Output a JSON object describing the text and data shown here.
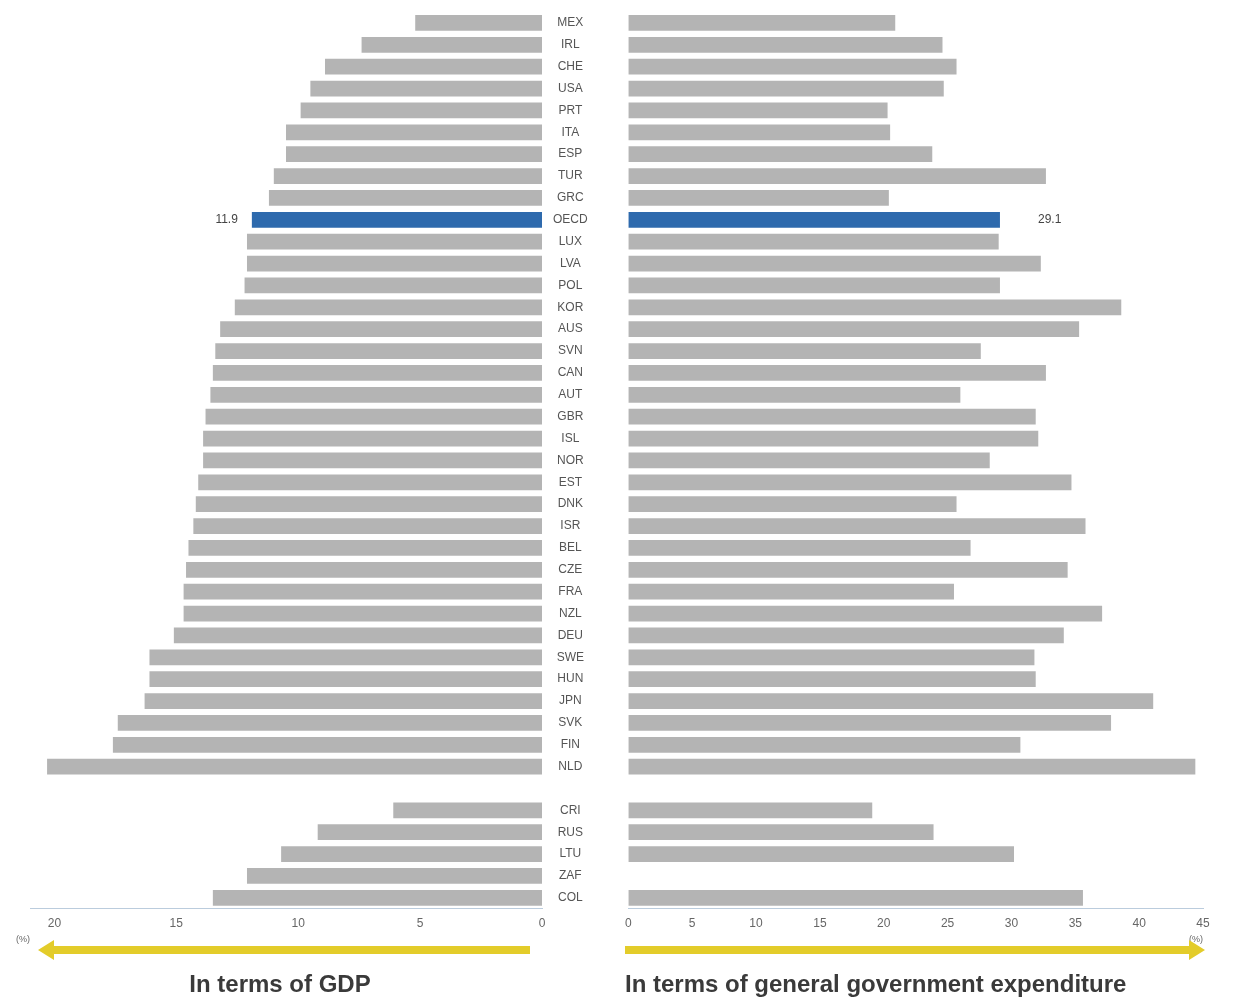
{
  "chart_data": [
    {
      "type": "bar",
      "orientation": "horizontal",
      "title": "In terms of GDP",
      "xlabel": "(%)",
      "xlim": [
        21,
        0
      ],
      "xticks": [
        20,
        15,
        10,
        5,
        0
      ],
      "categories": [
        "MEX",
        "IRL",
        "CHE",
        "USA",
        "PRT",
        "ITA",
        "ESP",
        "TUR",
        "GRC",
        "OECD",
        "LUX",
        "LVA",
        "POL",
        "KOR",
        "AUS",
        "SVN",
        "CAN",
        "AUT",
        "GBR",
        "ISL",
        "NOR",
        "EST",
        "DNK",
        "ISR",
        "BEL",
        "CZE",
        "FRA",
        "NZL",
        "DEU",
        "SWE",
        "HUN",
        "JPN",
        "SVK",
        "FIN",
        "NLD",
        null,
        "CRI",
        "RUS",
        "LTU",
        "ZAF",
        "COL"
      ],
      "values": [
        5.2,
        7.4,
        8.9,
        9.5,
        9.9,
        10.5,
        10.5,
        11.0,
        11.2,
        11.9,
        12.1,
        12.1,
        12.2,
        12.6,
        13.2,
        13.4,
        13.5,
        13.6,
        13.8,
        13.9,
        13.9,
        14.1,
        14.2,
        14.3,
        14.5,
        14.6,
        14.7,
        14.7,
        15.1,
        16.1,
        16.1,
        16.3,
        17.4,
        17.6,
        20.3,
        null,
        6.1,
        9.2,
        10.7,
        12.1,
        13.5
      ],
      "colors": [
        "#b4b4b4",
        "#b4b4b4",
        "#b4b4b4",
        "#b4b4b4",
        "#b4b4b4",
        "#b4b4b4",
        "#b4b4b4",
        "#b4b4b4",
        "#b4b4b4",
        "#2e6aad",
        "#b4b4b4",
        "#b4b4b4",
        "#b4b4b4",
        "#b4b4b4",
        "#b4b4b4",
        "#b4b4b4",
        "#b4b4b4",
        "#b4b4b4",
        "#b4b4b4",
        "#b4b4b4",
        "#b4b4b4",
        "#b4b4b4",
        "#b4b4b4",
        "#b4b4b4",
        "#b4b4b4",
        "#b4b4b4",
        "#b4b4b4",
        "#b4b4b4",
        "#b4b4b4",
        "#b4b4b4",
        "#b4b4b4",
        "#b4b4b4",
        "#b4b4b4",
        "#b4b4b4",
        "#b4b4b4",
        "#b4b4b4",
        "#b4b4b4",
        "#b4b4b4",
        "#b4b4b4",
        "#b4b4b4",
        "#b4b4b4"
      ],
      "value_labels": [
        null,
        null,
        null,
        null,
        null,
        null,
        null,
        null,
        null,
        "11.9",
        null,
        null,
        null,
        null,
        null,
        null,
        null,
        null,
        null,
        null,
        null,
        null,
        null,
        null,
        null,
        null,
        null,
        null,
        null,
        null,
        null,
        null,
        null,
        null,
        null,
        null,
        null,
        null,
        null,
        null,
        null
      ]
    },
    {
      "type": "bar",
      "orientation": "horizontal",
      "title": "In terms of general government expenditure",
      "xlabel": "(%)",
      "xlim": [
        0,
        45
      ],
      "xticks": [
        0,
        5,
        10,
        15,
        20,
        25,
        30,
        35,
        40,
        45
      ],
      "tick_labels": "x",
      "categories": [
        "MEX",
        "IRL",
        "CHE",
        "USA",
        "PRT",
        "ITA",
        "ESP",
        "TUR",
        "GRC",
        "OECD",
        "LUX",
        "LVA",
        "POL",
        "KOR",
        "AUS",
        "SVN",
        "CAN",
        "AUT",
        "GBR",
        "ISL",
        "NOR",
        "EST",
        "DNK",
        "ISR",
        "BEL",
        "CZE",
        "FRA",
        "NZL",
        "DEU",
        "SWE",
        "HUN",
        "JPN",
        "SVK",
        "FIN",
        "NLD",
        null,
        "CRI",
        "RUS",
        "LTU",
        "ZAF",
        "COL"
      ],
      "values": [
        20.9,
        24.6,
        25.7,
        24.7,
        20.3,
        20.5,
        23.8,
        32.7,
        20.4,
        29.1,
        29.0,
        32.3,
        29.1,
        38.6,
        35.3,
        27.6,
        32.7,
        26.0,
        31.9,
        32.1,
        28.3,
        34.7,
        25.7,
        35.8,
        26.8,
        34.4,
        25.5,
        37.1,
        34.1,
        31.8,
        31.9,
        41.1,
        37.8,
        30.7,
        44.4,
        null,
        19.1,
        23.9,
        30.2,
        null,
        35.6
      ],
      "colors": [
        "#b4b4b4",
        "#b4b4b4",
        "#b4b4b4",
        "#b4b4b4",
        "#b4b4b4",
        "#b4b4b4",
        "#b4b4b4",
        "#b4b4b4",
        "#b4b4b4",
        "#2e6aad",
        "#b4b4b4",
        "#b4b4b4",
        "#b4b4b4",
        "#b4b4b4",
        "#b4b4b4",
        "#b4b4b4",
        "#b4b4b4",
        "#b4b4b4",
        "#b4b4b4",
        "#b4b4b4",
        "#b4b4b4",
        "#b4b4b4",
        "#b4b4b4",
        "#b4b4b4",
        "#b4b4b4",
        "#b4b4b4",
        "#b4b4b4",
        "#b4b4b4",
        "#b4b4b4",
        "#b4b4b4",
        "#b4b4b4",
        "#b4b4b4",
        "#b4b4b4",
        "#b4b4b4",
        "#b4b4b4",
        "#b4b4b4",
        "#b4b4b4",
        "#b4b4b4",
        "#b4b4b4",
        "#b4b4b4",
        "#b4b4b4"
      ],
      "value_labels": [
        null,
        null,
        null,
        null,
        null,
        null,
        null,
        null,
        null,
        "29.1",
        null,
        null,
        null,
        null,
        null,
        null,
        null,
        null,
        null,
        null,
        null,
        null,
        null,
        null,
        null,
        null,
        null,
        null,
        null,
        null,
        null,
        null,
        null,
        null,
        null,
        null,
        null,
        null,
        null,
        null,
        null
      ]
    }
  ]
}
